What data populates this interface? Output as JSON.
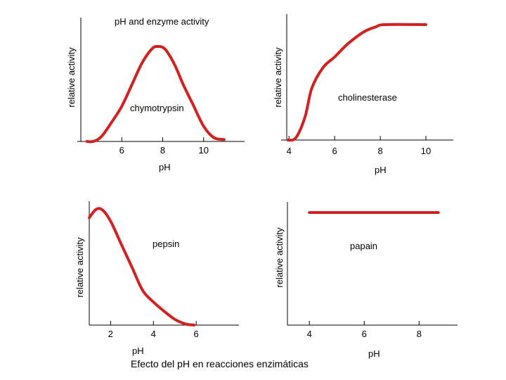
{
  "caption": "Efecto del pH en reacciones enzimáticas",
  "colors": {
    "curve": "#d32020",
    "axis": "#000000"
  },
  "chart_data": [
    {
      "type": "line",
      "title": "pH and enzyme activity",
      "series_label": "chymotrypsin",
      "xlabel": "pH",
      "ylabel": "relative activity",
      "xlim": [
        4,
        12
      ],
      "ylim": [
        0,
        1
      ],
      "xticks": [
        6,
        8,
        10
      ],
      "tick_labels": [
        "6",
        "8",
        "10"
      ],
      "x": [
        4.3,
        4.6,
        5.0,
        5.5,
        6.0,
        6.5,
        7.0,
        7.5,
        7.8,
        8.0,
        8.2,
        8.6,
        9.0,
        9.5,
        10.0,
        10.5,
        11.0
      ],
      "y": [
        0.0,
        0.0,
        0.05,
        0.2,
        0.37,
        0.6,
        0.83,
        0.98,
        1.0,
        0.99,
        0.95,
        0.8,
        0.6,
        0.38,
        0.16,
        0.04,
        0.02
      ]
    },
    {
      "type": "line",
      "title": "",
      "series_label": "cholinesterase",
      "xlabel": "pH",
      "ylabel": "relative activity",
      "xlim": [
        3.9,
        11.2
      ],
      "ylim": [
        0,
        1
      ],
      "xticks": [
        4,
        6,
        8,
        10
      ],
      "tick_labels": [
        "4",
        "6",
        "8",
        "10"
      ],
      "x": [
        3.95,
        4.3,
        4.7,
        5.0,
        5.5,
        6.0,
        6.5,
        7.0,
        7.4,
        7.8,
        8.2,
        10.0
      ],
      "y": [
        0.0,
        0.02,
        0.2,
        0.45,
        0.63,
        0.72,
        0.82,
        0.9,
        0.95,
        0.98,
        1.0,
        1.0
      ]
    },
    {
      "type": "line",
      "title": "",
      "series_label": "pepsin",
      "xlabel": "pH",
      "ylabel": "relative activity",
      "xlim": [
        1,
        8
      ],
      "ylim": [
        0,
        1
      ],
      "xticks": [
        2,
        4,
        6
      ],
      "tick_labels": [
        "2",
        "4",
        "6"
      ],
      "x": [
        1.0,
        1.3,
        1.6,
        2.0,
        2.5,
        3.0,
        3.5,
        4.0,
        4.5,
        5.0,
        5.5,
        5.9
      ],
      "y": [
        0.93,
        1.0,
        1.0,
        0.9,
        0.7,
        0.5,
        0.3,
        0.2,
        0.12,
        0.05,
        0.01,
        0.0
      ]
    },
    {
      "type": "line",
      "title": "",
      "series_label": "papain",
      "xlabel": "pH",
      "ylabel": "relative activity",
      "xlim": [
        3.2,
        9.4
      ],
      "ylim": [
        0,
        1
      ],
      "xticks": [
        4,
        6,
        8
      ],
      "tick_labels": [
        "4",
        "6",
        "8"
      ],
      "x": [
        4.0,
        8.7
      ],
      "y": [
        1.0,
        1.0
      ]
    }
  ]
}
